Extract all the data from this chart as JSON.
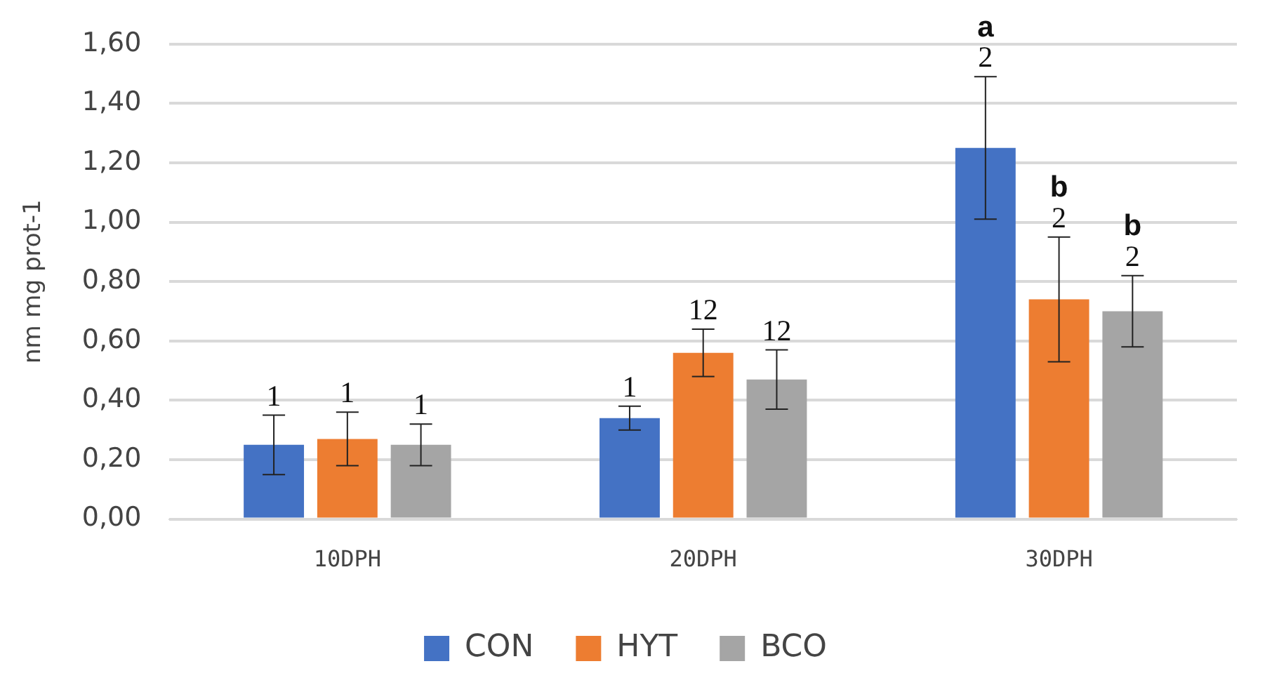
{
  "chart_data": {
    "type": "bar",
    "ylabel": "nm mg prot-1",
    "categories": [
      "10DPH",
      "20DPH",
      "30DPH"
    ],
    "series": [
      {
        "name": "CON",
        "color": "#4472c4",
        "values": [
          0.25,
          0.34,
          1.25
        ],
        "errors": [
          0.1,
          0.04,
          0.24
        ]
      },
      {
        "name": "HYT",
        "color": "#ed7d31",
        "values": [
          0.27,
          0.56,
          0.74
        ],
        "errors": [
          0.09,
          0.08,
          0.21
        ]
      },
      {
        "name": "BCO",
        "color": "#a5a5a5",
        "values": [
          0.25,
          0.47,
          0.7
        ],
        "errors": [
          0.07,
          0.1,
          0.12
        ]
      }
    ],
    "annotations": [
      "1",
      "1",
      "1",
      "1",
      "12",
      "12",
      "a\n2",
      "b\n2",
      "b\n2"
    ],
    "ylim": [
      0,
      1.6
    ],
    "yticks": [
      {
        "value": 0,
        "label": "0,00"
      },
      {
        "value": 0.2,
        "label": "0,20"
      },
      {
        "value": 0.4,
        "label": "0,40"
      },
      {
        "value": 0.6,
        "label": "0,60"
      },
      {
        "value": 0.8,
        "label": "0,80"
      },
      {
        "value": 1.0,
        "label": "1,00"
      },
      {
        "value": 1.2,
        "label": "1,20"
      },
      {
        "value": 1.4,
        "label": "1,40"
      },
      {
        "value": 1.6,
        "label": "1,60"
      }
    ],
    "grid": "y",
    "legend": "bottom"
  }
}
